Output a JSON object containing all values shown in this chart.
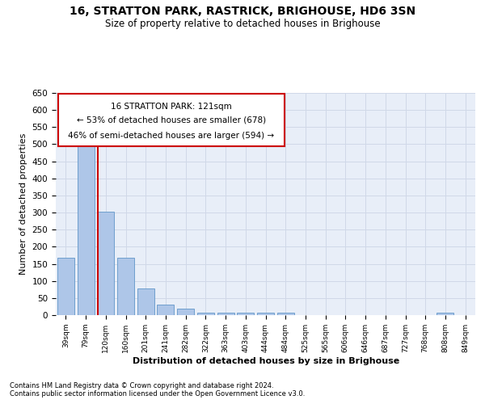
{
  "title1": "16, STRATTON PARK, RASTRICK, BRIGHOUSE, HD6 3SN",
  "title2": "Size of property relative to detached houses in Brighouse",
  "xlabel": "Distribution of detached houses by size in Brighouse",
  "ylabel": "Number of detached properties",
  "categories": [
    "39sqm",
    "79sqm",
    "120sqm",
    "160sqm",
    "201sqm",
    "241sqm",
    "282sqm",
    "322sqm",
    "363sqm",
    "403sqm",
    "444sqm",
    "484sqm",
    "525sqm",
    "565sqm",
    "606sqm",
    "646sqm",
    "687sqm",
    "727sqm",
    "768sqm",
    "808sqm",
    "849sqm"
  ],
  "values": [
    168,
    510,
    302,
    168,
    77,
    31,
    20,
    8,
    8,
    8,
    8,
    8,
    0,
    0,
    0,
    0,
    0,
    0,
    0,
    8,
    0
  ],
  "bar_color": "#aec6e8",
  "bar_edge_color": "#6096c8",
  "grid_color": "#d0d8e8",
  "annotation_box_color": "#cc0000",
  "annotation_text_line1": "16 STRATTON PARK: 121sqm",
  "annotation_text_line2": "← 53% of detached houses are smaller (678)",
  "annotation_text_line3": "46% of semi-detached houses are larger (594) →",
  "property_line_x": 1.6,
  "ylim": [
    0,
    650
  ],
  "yticks": [
    0,
    50,
    100,
    150,
    200,
    250,
    300,
    350,
    400,
    450,
    500,
    550,
    600,
    650
  ],
  "footnote1": "Contains HM Land Registry data © Crown copyright and database right 2024.",
  "footnote2": "Contains public sector information licensed under the Open Government Licence v3.0.",
  "background_color": "#e8eef8",
  "fig_background": "#ffffff"
}
